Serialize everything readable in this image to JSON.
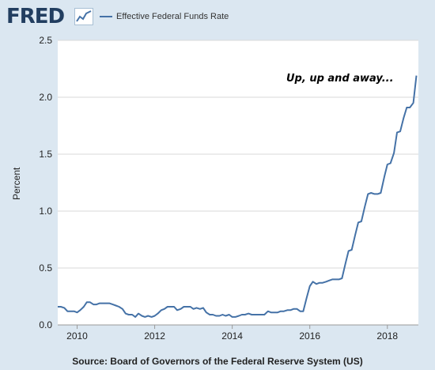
{
  "header": {
    "logo_text": "FRED",
    "legend_label": "Effective Federal Funds Rate"
  },
  "annotation": "Up, up and away...",
  "source": "Source: Board of Governors of the Federal Reserve System (US)",
  "colors": {
    "line": "#4572a7",
    "background": "#dbe7f1",
    "plot_background": "#ffffff",
    "grid": "#d8d8d8"
  },
  "chart_data": {
    "type": "line",
    "xlabel": "",
    "ylabel": "Percent",
    "xlim": [
      2009.5,
      2018.8
    ],
    "ylim": [
      0,
      2.5
    ],
    "x_ticks": [
      2010,
      2012,
      2014,
      2016,
      2018
    ],
    "x_tick_labels": [
      "2010",
      "2012",
      "2014",
      "2016",
      "2018"
    ],
    "y_ticks": [
      0,
      0.5,
      1.0,
      1.5,
      2.0,
      2.5
    ],
    "y_tick_labels": [
      "0.0",
      "0.5",
      "1.0",
      "1.5",
      "2.0",
      "2.5"
    ],
    "grid": "horizontal",
    "legend": "top-left",
    "series": [
      {
        "name": "Effective Federal Funds Rate",
        "x": [
          2009.5,
          2009.58,
          2009.67,
          2009.75,
          2009.83,
          2009.92,
          2010.0,
          2010.08,
          2010.17,
          2010.25,
          2010.33,
          2010.42,
          2010.5,
          2010.58,
          2010.67,
          2010.75,
          2010.83,
          2010.92,
          2011.0,
          2011.08,
          2011.17,
          2011.25,
          2011.33,
          2011.42,
          2011.5,
          2011.58,
          2011.67,
          2011.75,
          2011.83,
          2011.92,
          2012.0,
          2012.08,
          2012.17,
          2012.25,
          2012.33,
          2012.42,
          2012.5,
          2012.58,
          2012.67,
          2012.75,
          2012.83,
          2012.92,
          2013.0,
          2013.08,
          2013.17,
          2013.25,
          2013.33,
          2013.42,
          2013.5,
          2013.58,
          2013.67,
          2013.75,
          2013.83,
          2013.92,
          2014.0,
          2014.08,
          2014.17,
          2014.25,
          2014.33,
          2014.42,
          2014.5,
          2014.58,
          2014.67,
          2014.75,
          2014.83,
          2014.92,
          2015.0,
          2015.08,
          2015.17,
          2015.25,
          2015.33,
          2015.42,
          2015.5,
          2015.58,
          2015.67,
          2015.75,
          2015.83,
          2015.92,
          2016.0,
          2016.08,
          2016.17,
          2016.25,
          2016.33,
          2016.42,
          2016.5,
          2016.58,
          2016.67,
          2016.75,
          2016.83,
          2016.92,
          2017.0,
          2017.08,
          2017.17,
          2017.25,
          2017.33,
          2017.42,
          2017.5,
          2017.58,
          2017.67,
          2017.75,
          2017.83,
          2017.92,
          2018.0,
          2018.08,
          2018.17,
          2018.25,
          2018.33,
          2018.42,
          2018.5,
          2018.58,
          2018.67,
          2018.75
        ],
        "values": [
          0.16,
          0.16,
          0.15,
          0.12,
          0.12,
          0.12,
          0.11,
          0.13,
          0.16,
          0.2,
          0.2,
          0.18,
          0.18,
          0.19,
          0.19,
          0.19,
          0.19,
          0.18,
          0.17,
          0.16,
          0.14,
          0.1,
          0.09,
          0.09,
          0.07,
          0.1,
          0.08,
          0.07,
          0.08,
          0.07,
          0.08,
          0.1,
          0.13,
          0.14,
          0.16,
          0.16,
          0.16,
          0.13,
          0.14,
          0.16,
          0.16,
          0.16,
          0.14,
          0.15,
          0.14,
          0.15,
          0.11,
          0.09,
          0.09,
          0.08,
          0.08,
          0.09,
          0.08,
          0.09,
          0.07,
          0.07,
          0.08,
          0.09,
          0.09,
          0.1,
          0.09,
          0.09,
          0.09,
          0.09,
          0.09,
          0.12,
          0.11,
          0.11,
          0.11,
          0.12,
          0.12,
          0.13,
          0.13,
          0.14,
          0.14,
          0.12,
          0.12,
          0.24,
          0.34,
          0.38,
          0.36,
          0.37,
          0.37,
          0.38,
          0.39,
          0.4,
          0.4,
          0.4,
          0.41,
          0.54,
          0.65,
          0.66,
          0.79,
          0.9,
          0.91,
          1.04,
          1.15,
          1.16,
          1.15,
          1.15,
          1.16,
          1.3,
          1.41,
          1.42,
          1.51,
          1.69,
          1.7,
          1.82,
          1.91,
          1.91,
          1.95,
          2.19
        ]
      }
    ]
  }
}
